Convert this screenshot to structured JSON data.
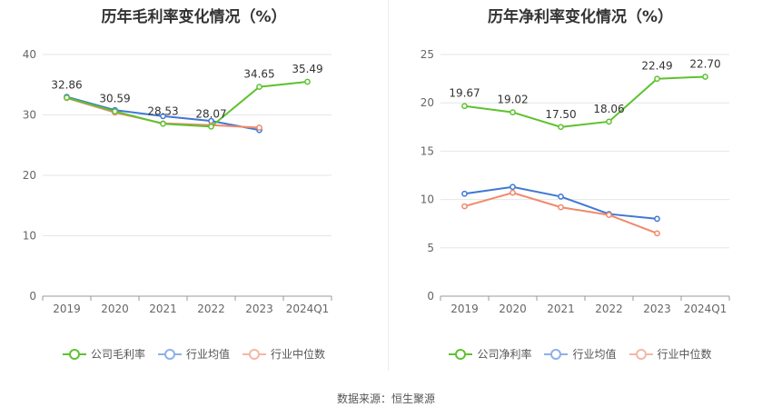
{
  "source_text": "数据来源：恒生聚源",
  "colors": {
    "company": "#5ec22f",
    "industry_avg": "#3f78d4",
    "industry_median": "#f0896b",
    "grid": "#e6e6e6",
    "axis": "#999999"
  },
  "chart_data": [
    {
      "type": "line",
      "title": "历年毛利率变化情况（%）",
      "categories": [
        "2019",
        "2020",
        "2021",
        "2022",
        "2023",
        "2024Q1"
      ],
      "ylim": [
        0,
        40
      ],
      "yticks": [
        0,
        10,
        20,
        30,
        40
      ],
      "grid": true,
      "legend_position": "bottom",
      "series": [
        {
          "name": "公司毛利率",
          "key": "company",
          "values": [
            32.86,
            30.59,
            28.53,
            28.07,
            34.65,
            35.49
          ],
          "labels": [
            "32.86",
            "30.59",
            "28.53",
            "28.07",
            "34.65",
            "35.49"
          ]
        },
        {
          "name": "行业均值",
          "key": "industry_avg",
          "values": [
            33.0,
            30.8,
            29.8,
            29.0,
            27.5,
            null
          ]
        },
        {
          "name": "行业中位数",
          "key": "industry_median",
          "values": [
            32.8,
            30.4,
            28.6,
            28.3,
            27.9,
            null
          ]
        }
      ]
    },
    {
      "type": "line",
      "title": "历年净利率变化情况（%）",
      "categories": [
        "2019",
        "2020",
        "2021",
        "2022",
        "2023",
        "2024Q1"
      ],
      "ylim": [
        0,
        25
      ],
      "yticks": [
        0,
        5,
        10,
        15,
        20,
        25
      ],
      "grid": true,
      "legend_position": "bottom",
      "series": [
        {
          "name": "公司净利率",
          "key": "company",
          "values": [
            19.67,
            19.02,
            17.5,
            18.06,
            22.49,
            22.7
          ],
          "labels": [
            "19.67",
            "19.02",
            "17.50",
            "18.06",
            "22.49",
            "22.70"
          ]
        },
        {
          "name": "行业均值",
          "key": "industry_avg",
          "values": [
            10.6,
            11.3,
            10.3,
            8.5,
            8.0,
            null
          ]
        },
        {
          "name": "行业中位数",
          "key": "industry_median",
          "values": [
            9.3,
            10.7,
            9.2,
            8.4,
            6.5,
            null
          ]
        }
      ]
    }
  ]
}
